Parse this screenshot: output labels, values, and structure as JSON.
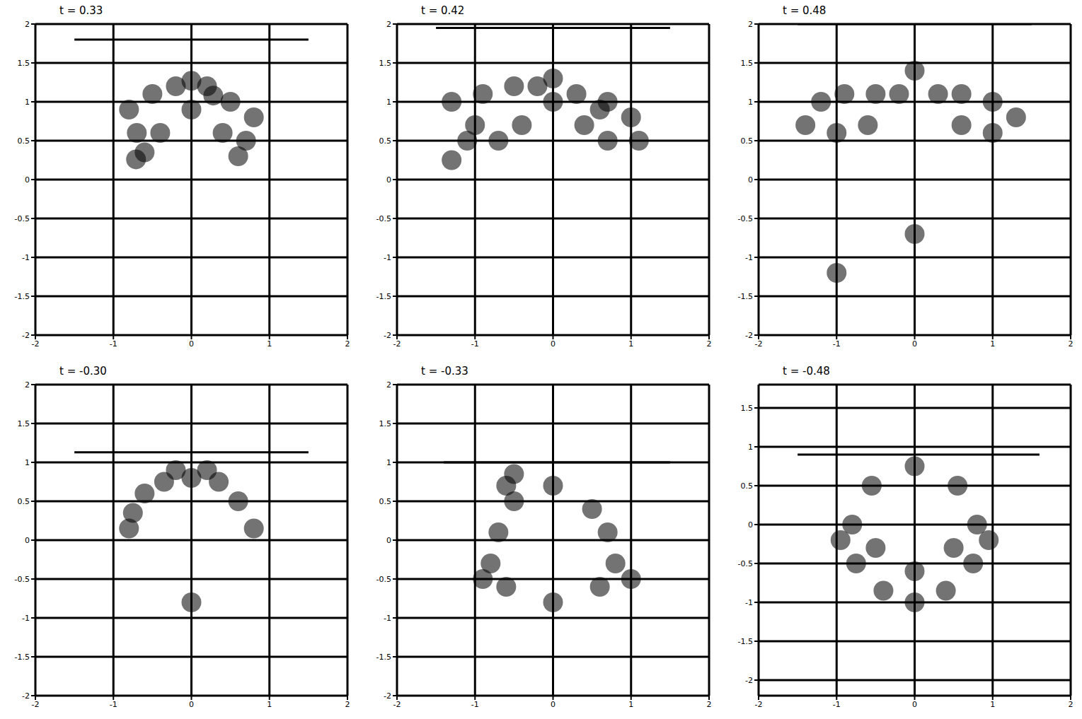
{
  "chart_data": [
    {
      "type": "scatter",
      "title": "t = 0.33",
      "xlim": [
        -2,
        2
      ],
      "ylim": [
        -2,
        2
      ],
      "xticks": [
        -2,
        -1,
        0,
        1,
        2
      ],
      "yticks": [
        -2,
        -1.5,
        -1,
        -0.5,
        0,
        0.5,
        1,
        1.5,
        2
      ],
      "grid": true,
      "color": "#000000",
      "x": [
        0,
        0.28,
        -0.71,
        -0.8,
        -0.5,
        -0.2,
        0.2,
        0.5,
        0.8,
        -0.7,
        0.7,
        -0.4,
        0.4,
        0,
        0.6,
        -0.6
      ],
      "y": [
        1.27,
        1.08,
        0.26,
        0.9,
        1.1,
        1.2,
        1.2,
        1.0,
        0.8,
        0.6,
        0.5,
        0.6,
        0.6,
        0.9,
        0.3,
        0.35
      ],
      "segment_x": [
        -1.5,
        1.5
      ],
      "segment_y": [
        1.8,
        1.8
      ]
    },
    {
      "type": "scatter",
      "title": "t = 0.42",
      "xlim": [
        -2,
        2
      ],
      "ylim": [
        -2,
        2
      ],
      "xticks": [
        -2,
        -1,
        0,
        1,
        2
      ],
      "yticks": [
        -2,
        -1.5,
        -1,
        -0.5,
        0,
        0.5,
        1,
        1.5,
        2
      ],
      "grid": true,
      "color": "#000000",
      "x": [
        -1.0,
        -1.3,
        0,
        0.6,
        -1.3,
        -0.9,
        -0.5,
        -0.2,
        0.3,
        0.7,
        1.0,
        -0.7,
        0.7,
        -0.4,
        0.4,
        0,
        1.1,
        -1.1
      ],
      "y": [
        0.7,
        0.25,
        1.3,
        0.9,
        1.0,
        1.1,
        1.2,
        1.2,
        1.1,
        1.0,
        0.8,
        0.5,
        0.5,
        0.7,
        0.7,
        1.0,
        0.5,
        0.5
      ],
      "segment_x": [
        -1.5,
        1.5
      ],
      "segment_y": [
        1.95,
        1.95
      ]
    },
    {
      "type": "scatter",
      "title": "t = 0.48",
      "xlim": [
        -2,
        2
      ],
      "ylim": [
        -2,
        2
      ],
      "xticks": [
        -2,
        -1,
        0,
        1,
        2
      ],
      "yticks": [
        -2,
        -1.5,
        -1,
        -0.5,
        0,
        0.5,
        1,
        1.5,
        2
      ],
      "grid": true,
      "color": "#000000",
      "x": [
        0,
        1.0,
        -1.2,
        -1.4,
        -0.9,
        -0.5,
        -0.2,
        0.3,
        0.6,
        1.3,
        -1.0,
        -0.6,
        0.6,
        1.0,
        0,
        -1.0
      ],
      "y": [
        1.4,
        1.0,
        1.0,
        0.7,
        1.1,
        1.1,
        1.1,
        1.1,
        1.1,
        0.8,
        0.6,
        0.7,
        0.7,
        0.6,
        -0.7,
        -1.2
      ],
      "segment_x": [
        -1.5,
        1.5
      ],
      "segment_y": [
        2.0,
        2.0
      ]
    },
    {
      "type": "scatter",
      "title": "t = -0.30",
      "xlim": [
        -2,
        2
      ],
      "ylim": [
        -2,
        2
      ],
      "xticks": [
        -2,
        -1,
        0,
        1,
        2
      ],
      "yticks": [
        -2,
        -1.5,
        -1,
        -0.5,
        0,
        0.5,
        1,
        1.5,
        2
      ],
      "grid": true,
      "color": "#000000",
      "x": [
        -0.75,
        -0.6,
        -0.35,
        0,
        0.35,
        0.6,
        0.8,
        -0.8,
        0,
        -0.2,
        0.2
      ],
      "y": [
        0.35,
        0.6,
        0.75,
        0.8,
        0.75,
        0.5,
        0.15,
        0.15,
        -0.8,
        0.9,
        0.9
      ],
      "segment_x": [
        -1.5,
        1.5
      ],
      "segment_y": [
        1.13,
        1.13
      ]
    },
    {
      "type": "scatter",
      "title": "t = -0.33",
      "xlim": [
        -2,
        2
      ],
      "ylim": [
        -2,
        2
      ],
      "xticks": [
        -2,
        -1,
        0,
        1,
        2
      ],
      "yticks": [
        -2,
        -1.5,
        -1,
        -0.5,
        0,
        0.5,
        1,
        1.5,
        2
      ],
      "grid": true,
      "color": "#000000",
      "x": [
        -0.8,
        -0.9,
        -0.6,
        0.8,
        1.0,
        0.6,
        -0.7,
        0.7,
        -0.5,
        0.5,
        0,
        -0.6,
        -0.5,
        0
      ],
      "y": [
        -0.3,
        -0.5,
        -0.6,
        -0.3,
        -0.5,
        -0.6,
        0.1,
        0.1,
        0.5,
        0.4,
        0.7,
        0.7,
        0.85,
        -0.8
      ],
      "segment_x": [
        -1.4,
        1.5
      ],
      "segment_y": [
        1.0,
        1.0
      ]
    },
    {
      "type": "scatter",
      "title": "t = -0.48",
      "xlim": [
        -2,
        2
      ],
      "ylim": [
        -2.2,
        1.8
      ],
      "xticks": [
        -2,
        -1,
        0,
        1,
        2
      ],
      "yticks": [
        -2,
        -1.5,
        -1,
        -0.5,
        0,
        0.5,
        1,
        1.5
      ],
      "grid": true,
      "color": "#000000",
      "x": [
        0,
        0.55,
        0.8,
        0.75,
        0.4,
        0,
        -0.4,
        -0.75,
        -0.8,
        -0.55,
        0,
        0.5,
        -0.5,
        0.95,
        -0.95
      ],
      "y": [
        0.75,
        0.5,
        0,
        -0.5,
        -0.85,
        -1.0,
        -0.85,
        -0.5,
        0,
        0.5,
        -0.6,
        -0.3,
        -0.3,
        -0.2,
        -0.2
      ],
      "segment_x": [
        -1.5,
        1.6
      ],
      "segment_y": [
        0.9,
        0.9
      ]
    }
  ]
}
